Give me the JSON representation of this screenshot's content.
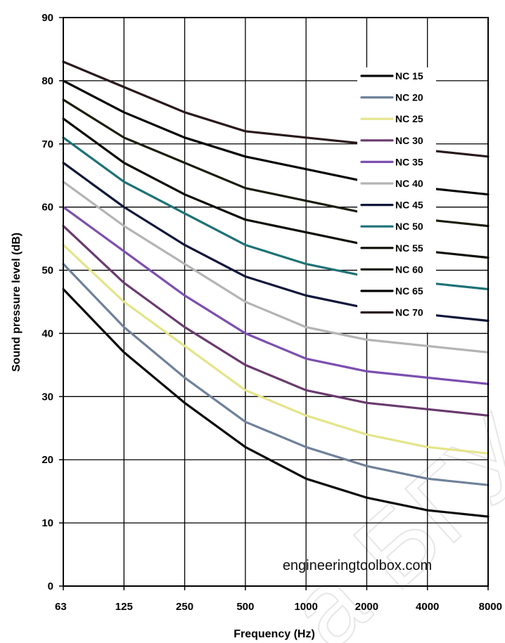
{
  "chart_data": {
    "type": "line",
    "title": "",
    "xlabel": "Frequency (Hz)",
    "ylabel": "Sound pressure level (dB)",
    "x_scale": "log",
    "categories": [
      "63",
      "125",
      "250",
      "500",
      "1000",
      "2000",
      "4000",
      "8000"
    ],
    "ylim": [
      0,
      90
    ],
    "yticks": [
      "0",
      "10",
      "20",
      "30",
      "40",
      "50",
      "60",
      "70",
      "80",
      "90"
    ],
    "grid": true,
    "legend_position": "top-right",
    "series": [
      {
        "name": "NC 15",
        "color": "#0a0a0a",
        "values": [
          47,
          37,
          29,
          22,
          17,
          14,
          12,
          11
        ]
      },
      {
        "name": "NC 20",
        "color": "#6f8199",
        "values": [
          51,
          41,
          33,
          26,
          22,
          19,
          17,
          16
        ]
      },
      {
        "name": "NC 25",
        "color": "#e4e48a",
        "values": [
          54,
          45,
          38,
          31,
          27,
          24,
          22,
          21
        ]
      },
      {
        "name": "NC 30",
        "color": "#6a3a6e",
        "values": [
          57,
          48,
          41,
          35,
          31,
          29,
          28,
          27
        ]
      },
      {
        "name": "NC 35",
        "color": "#7b4fb0",
        "values": [
          60,
          53,
          46,
          40,
          36,
          34,
          33,
          32
        ]
      },
      {
        "name": "NC 40",
        "color": "#b4b4b4",
        "values": [
          64,
          57,
          51,
          45,
          41,
          39,
          38,
          37
        ]
      },
      {
        "name": "NC 45",
        "color": "#10173a",
        "values": [
          67,
          60,
          54,
          49,
          46,
          44,
          43,
          42
        ]
      },
      {
        "name": "NC 50",
        "color": "#1e7276",
        "values": [
          71,
          64,
          59,
          54,
          51,
          49,
          48,
          47
        ]
      },
      {
        "name": "NC 55",
        "color": "#0b0f05",
        "values": [
          74,
          67,
          62,
          58,
          56,
          54,
          53,
          52
        ]
      },
      {
        "name": "NC 60",
        "color": "#1b1d0a",
        "values": [
          77,
          71,
          67,
          63,
          61,
          59,
          58,
          57
        ]
      },
      {
        "name": "NC 65",
        "color": "#050505",
        "values": [
          80,
          75,
          71,
          68,
          66,
          64,
          63,
          62
        ]
      },
      {
        "name": "NC 70",
        "color": "#2a1a1c",
        "values": [
          83,
          79,
          75,
          72,
          71,
          70,
          69,
          68
        ]
      }
    ],
    "annotations": [
      "engineeringtoolbox.com"
    ]
  }
}
